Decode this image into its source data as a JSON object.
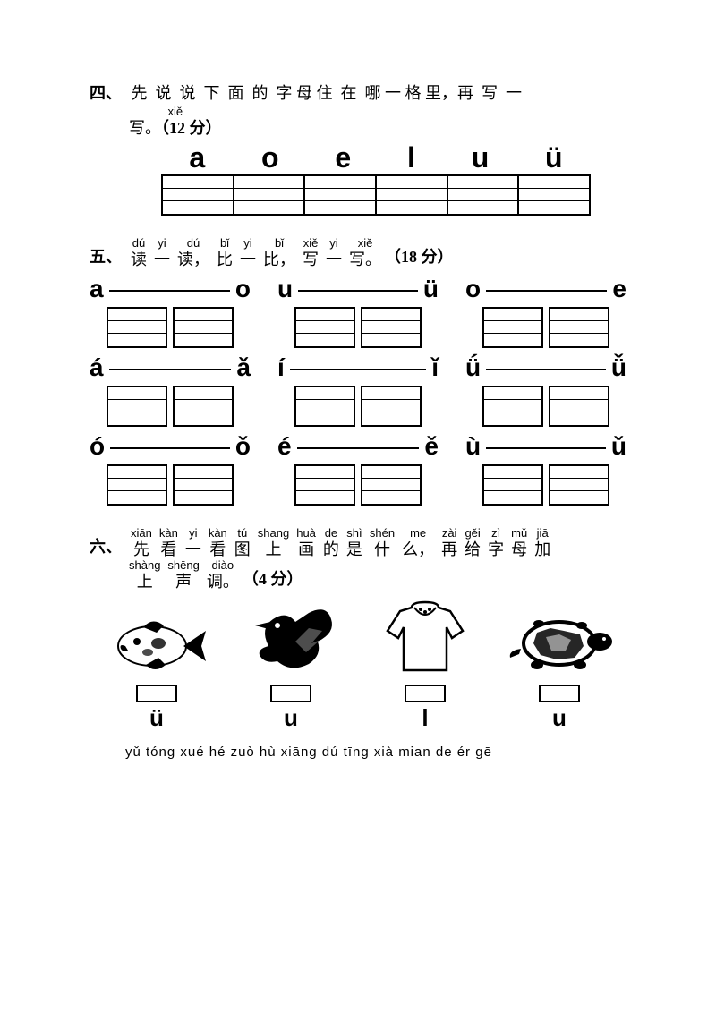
{
  "section4": {
    "number": "四、",
    "ruby_rt": [
      "",
      "",
      "",
      "",
      "",
      "",
      "",
      "",
      "",
      "",
      "",
      "",
      "",
      ""
    ],
    "ruby_rb": [
      "先",
      "说",
      "说",
      "下",
      "面",
      "的",
      "字",
      "母",
      "住",
      "在",
      "哪",
      "一",
      "格",
      "里，再"
    ],
    "tail": "写 一",
    "line2_rt": "xiě",
    "line2_rb": "写。",
    "points": "（12 分）",
    "letters": [
      "a",
      "o",
      "e",
      "l",
      "u",
      "ü"
    ],
    "grid_cols": 6,
    "grid_rows": 3,
    "grid_color": "#000000"
  },
  "section5": {
    "number": "五、",
    "ruby": [
      {
        "rt": "dú",
        "rb": "读"
      },
      {
        "rt": "yi",
        "rb": "一"
      },
      {
        "rt": "dú",
        "rb": "读，"
      },
      {
        "rt": "bǐ",
        "rb": "比"
      },
      {
        "rt": "yi",
        "rb": "一"
      },
      {
        "rt": "bǐ",
        "rb": "比，"
      },
      {
        "rt": "xiě",
        "rb": "写"
      },
      {
        "rt": "yi",
        "rb": "一"
      },
      {
        "rt": "xiě",
        "rb": "写。"
      }
    ],
    "points": "（18 分）",
    "rows": [
      [
        {
          "l": "a",
          "r": "o"
        },
        {
          "l": "u",
          "r": "ü"
        },
        {
          "l": "o",
          "r": "e"
        }
      ],
      [
        {
          "l": "á",
          "r": "ǎ"
        },
        {
          "l": "í",
          "r": "ǐ"
        },
        {
          "l": "ǘ",
          "r": "ǚ"
        }
      ],
      [
        {
          "l": "ó",
          "r": "ǒ"
        },
        {
          "l": "é",
          "r": "ě"
        },
        {
          "l": "ù",
          "r": "ǔ"
        }
      ]
    ],
    "grid_rows": 3
  },
  "section6": {
    "number": "六、",
    "ruby1": [
      {
        "rt": "xiān",
        "rb": "先"
      },
      {
        "rt": "kàn",
        "rb": "看"
      },
      {
        "rt": "yi",
        "rb": "一"
      },
      {
        "rt": "kàn",
        "rb": "看"
      },
      {
        "rt": "tú",
        "rb": "图"
      },
      {
        "rt": "shang",
        "rb": "上"
      },
      {
        "rt": "huà",
        "rb": "画"
      },
      {
        "rt": "de",
        "rb": "的"
      },
      {
        "rt": "shì",
        "rb": "是"
      },
      {
        "rt": "shén",
        "rb": "什"
      },
      {
        "rt": "me",
        "rb": "么，"
      },
      {
        "rt": "zài",
        "rb": "再"
      },
      {
        "rt": "gěi",
        "rb": "给"
      },
      {
        "rt": "zì",
        "rb": "字"
      },
      {
        "rt": "mǔ",
        "rb": "母"
      },
      {
        "rt": "jiā",
        "rb": "加"
      }
    ],
    "ruby2": [
      {
        "rt": "shàng",
        "rb": "上"
      },
      {
        "rt": "shēng",
        "rb": "声"
      },
      {
        "rt": "diào",
        "rb": "调。"
      }
    ],
    "points": "（4 分）",
    "items": [
      {
        "img": "fish",
        "letter": "ü"
      },
      {
        "img": "crow",
        "letter": "u"
      },
      {
        "img": "shirt",
        "letter": "l"
      },
      {
        "img": "turtle",
        "letter": "u"
      }
    ]
  },
  "footer": "yǔ tóng xué hé zuò  hù xiāng dú tīng  xià mian de ér gē",
  "colors": {
    "text": "#000000",
    "bg": "#ffffff"
  }
}
